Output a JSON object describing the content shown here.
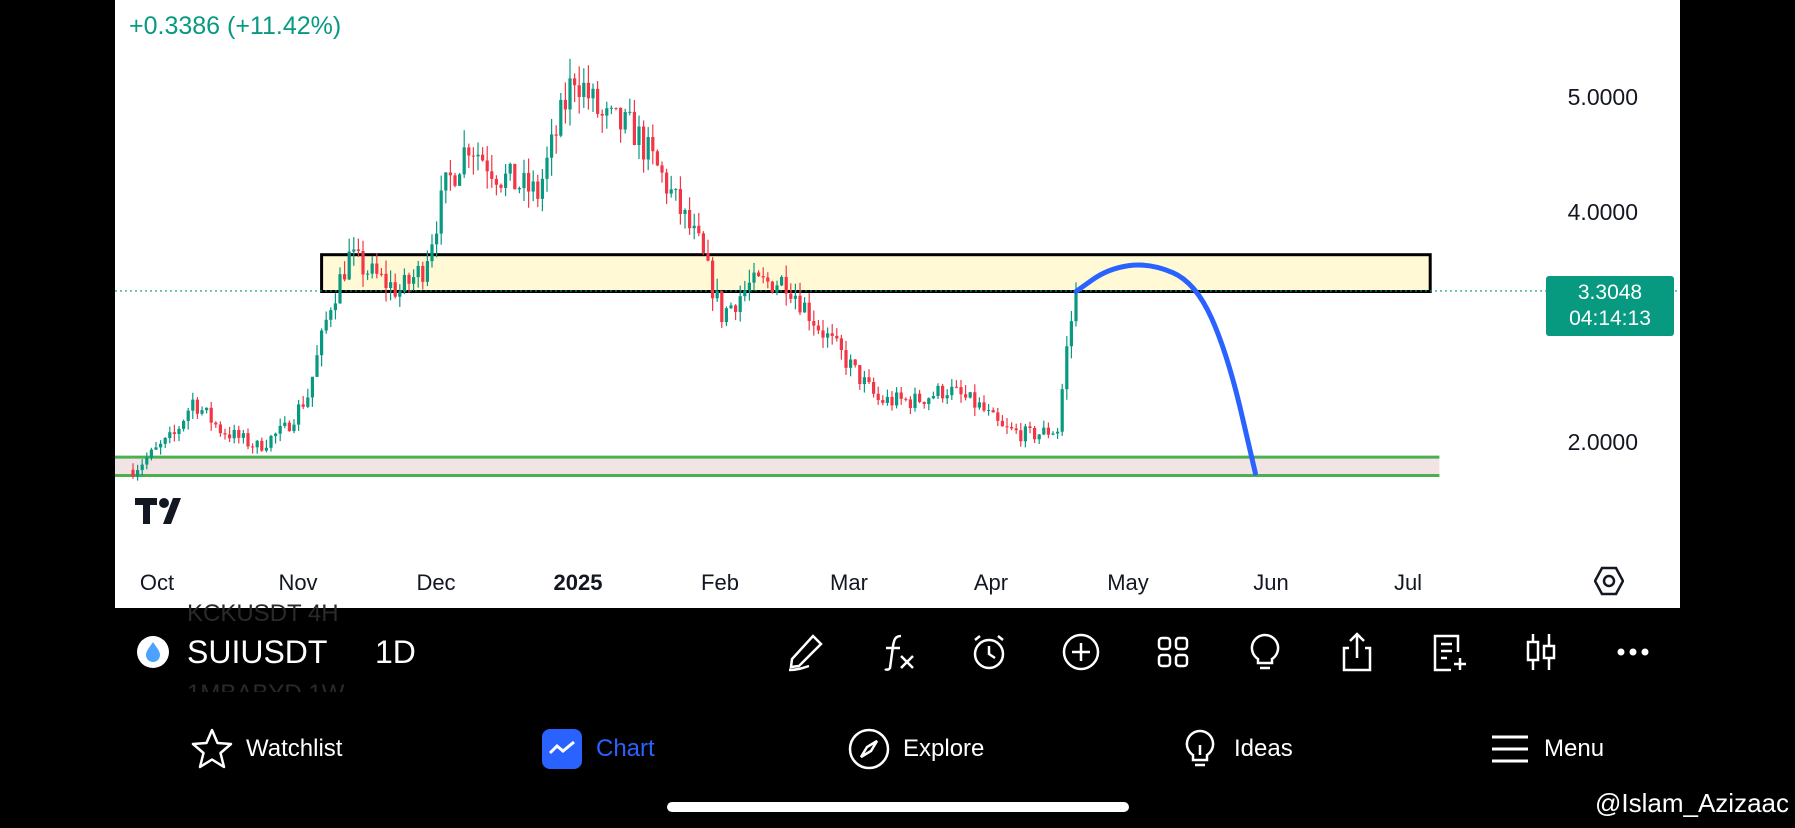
{
  "symbol": {
    "name": "SUIUSDT",
    "interval": "1D"
  },
  "change_text": "+0.3386 (+11.42%)",
  "price_tag": {
    "price": "3.3048",
    "countdown": "04:14:13"
  },
  "ghost_rows": [
    "KCKUSDT 4H",
    "1MBABYD 1W"
  ],
  "nav": {
    "watchlist": "Watchlist",
    "chart": "Chart",
    "explore": "Explore",
    "ideas": "Ideas",
    "menu": "Menu"
  },
  "watermark": "@Islam_Azizaac",
  "colors": {
    "up": "#089981",
    "down": "#f23645",
    "accent": "#2962ff",
    "zone_resistance": "#fff9d6",
    "zone_support_line": "#4caf50"
  },
  "chart_data": {
    "type": "candlestick",
    "y_tick_labels": [
      "5.0000",
      "4.0000",
      "2.0000"
    ],
    "y_ticks": [
      5.0,
      4.0,
      2.0
    ],
    "x_tick_labels": [
      "Oct",
      "Nov",
      "Dec",
      "2025",
      "Feb",
      "Mar",
      "Apr",
      "May",
      "Jun",
      "Jul"
    ],
    "x_ticks": [
      "2024-10-01",
      "2024-11-01",
      "2024-12-01",
      "2025-01-01",
      "2025-02-01",
      "2025-03-01",
      "2025-04-01",
      "2025-05-01",
      "2025-06-01",
      "2025-07-01"
    ],
    "last_price": 3.3048,
    "resistance_zone": {
      "from": "2024-11-11",
      "to": "2025-07-10",
      "low": 3.3,
      "high": 3.62
    },
    "support_zone": {
      "from": "2024-10-01",
      "to": "2025-07-12",
      "low": 1.7,
      "high": 1.86
    },
    "projection": [
      [
        "2025-04-24",
        3.3
      ],
      [
        "2025-05-01",
        3.5
      ],
      [
        "2025-05-10",
        3.55
      ],
      [
        "2025-05-20",
        3.38
      ],
      [
        "2025-05-27",
        2.75
      ],
      [
        "2025-06-02",
        1.72
      ]
    ],
    "price_path": [
      [
        "2024-10-01",
        1.75
      ],
      [
        "2024-10-10",
        2.05
      ],
      [
        "2024-10-14",
        2.35
      ],
      [
        "2024-10-20",
        2.1
      ],
      [
        "2024-10-28",
        1.95
      ],
      [
        "2024-11-03",
        2.1
      ],
      [
        "2024-11-08",
        2.4
      ],
      [
        "2024-11-13",
        3.2
      ],
      [
        "2024-11-17",
        3.6
      ],
      [
        "2024-11-22",
        3.45
      ],
      [
        "2024-11-28",
        3.3
      ],
      [
        "2024-12-03",
        3.5
      ],
      [
        "2024-12-08",
        4.2
      ],
      [
        "2024-12-13",
        4.6
      ],
      [
        "2024-12-20",
        4.3
      ],
      [
        "2024-12-28",
        4.15
      ],
      [
        "2025-01-05",
        5.2
      ],
      [
        "2025-01-11",
        4.8
      ],
      [
        "2025-01-18",
        4.7
      ],
      [
        "2025-01-24",
        4.3
      ],
      [
        "2025-02-01",
        3.7
      ],
      [
        "2025-02-06",
        3.1
      ],
      [
        "2025-02-12",
        3.35
      ],
      [
        "2025-02-20",
        3.4
      ],
      [
        "2025-02-27",
        3.0
      ],
      [
        "2025-03-05",
        2.7
      ],
      [
        "2025-03-12",
        2.35
      ],
      [
        "2025-03-20",
        2.35
      ],
      [
        "2025-03-27",
        2.45
      ],
      [
        "2025-04-03",
        2.3
      ],
      [
        "2025-04-08",
        2.1
      ],
      [
        "2025-04-14",
        2.05
      ],
      [
        "2025-04-20",
        2.1
      ],
      [
        "2025-04-22",
        2.8
      ],
      [
        "2025-04-24",
        3.3
      ]
    ]
  }
}
